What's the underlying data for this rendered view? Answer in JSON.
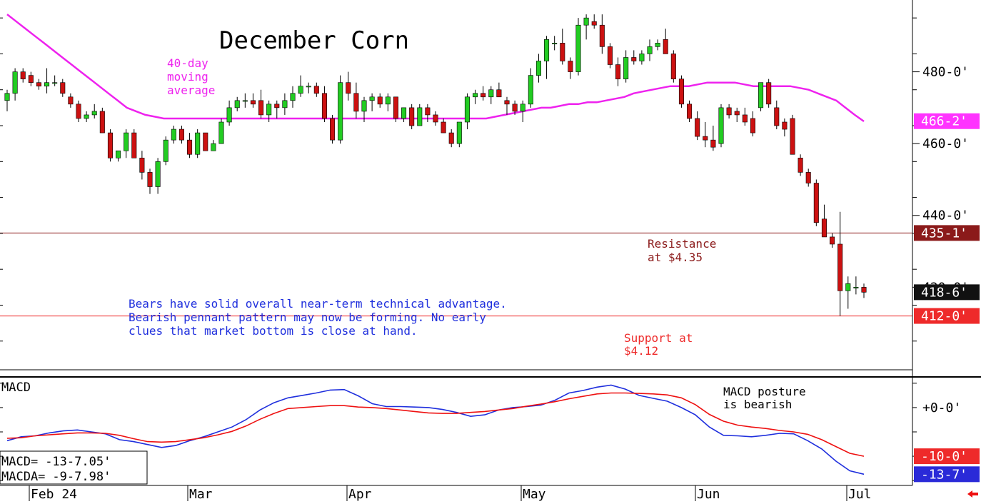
{
  "chart_data": [
    {
      "type": "candlestick",
      "title": "December Corn",
      "ylim": [
        397,
        500
      ],
      "y_ticks": [
        {
          "value": 480,
          "label": "480-0'"
        },
        {
          "value": 460,
          "label": "460-0'"
        },
        {
          "value": 440,
          "label": "440-0'"
        },
        {
          "value": 420,
          "label": "420-0'"
        }
      ],
      "x_labels": [
        "Feb 24",
        "Mar",
        "Apr",
        "May",
        "Jun",
        "Jul"
      ],
      "price_tags": [
        {
          "value": 466.25,
          "label": "466-2'",
          "color": "#ff33ff",
          "text_color": "#ffffff"
        },
        {
          "value": 435.1,
          "label": "435-1'",
          "color": "#8b1a1a",
          "text_color": "#ffffff"
        },
        {
          "value": 418.6,
          "label": "418-6'",
          "color": "#111111",
          "text_color": "#ffffff"
        },
        {
          "value": 412.0,
          "label": "412-0'",
          "color": "#ee2a2a",
          "text_color": "#ffffff"
        }
      ],
      "horizontal_lines": [
        {
          "name": "resistance",
          "value": 435.1,
          "color": "#8b1a1a"
        },
        {
          "name": "support",
          "value": 412.0,
          "color": "#ee2a2a"
        }
      ],
      "annotations": {
        "ma_label": [
          "40-day",
          "moving",
          "average"
        ],
        "resistance": [
          "Resistance",
          "at $4.35"
        ],
        "support": [
          "Support at",
          "$4.12"
        ],
        "commentary": [
          "Bears have solid overall near-term technical advantage.",
          "Bearish pennant pattern may now be forming. No early",
          "clues that market bottom is close at hand."
        ]
      },
      "colors": {
        "up": "#22cc22",
        "down": "#cc1111",
        "ma": "#ee22ee",
        "axis": "#000000"
      },
      "moving_average_40": [
        496,
        494,
        492,
        490,
        488,
        486,
        484,
        482,
        480,
        478,
        476,
        474,
        472,
        470,
        469,
        468,
        467.5,
        467,
        467,
        467,
        467,
        467,
        467,
        467,
        467,
        467,
        467,
        467,
        467,
        467,
        467,
        467,
        467,
        467,
        467,
        467,
        467,
        467,
        467,
        467,
        467,
        467,
        467,
        467,
        467,
        467,
        467,
        467,
        467,
        467,
        467,
        467,
        467,
        467.5,
        468,
        468.5,
        469,
        469.5,
        470,
        470,
        470.5,
        471,
        471,
        471.5,
        471.5,
        472,
        472.5,
        473,
        474,
        474.5,
        475,
        475.5,
        476,
        476,
        476,
        476.5,
        477,
        477,
        477,
        477,
        476.5,
        476,
        476,
        476,
        476,
        476,
        475.5,
        475,
        474,
        473,
        472,
        470,
        468,
        466.2
      ],
      "candles": [
        {
          "o": 472,
          "h": 475,
          "l": 469,
          "c": 474
        },
        {
          "o": 474,
          "h": 481,
          "l": 472,
          "c": 480
        },
        {
          "o": 480,
          "h": 481,
          "l": 477,
          "c": 478
        },
        {
          "o": 479,
          "h": 480,
          "l": 476,
          "c": 477
        },
        {
          "o": 477,
          "h": 478,
          "l": 475,
          "c": 476
        },
        {
          "o": 476,
          "h": 481,
          "l": 474,
          "c": 477
        },
        {
          "o": 477,
          "h": 479,
          "l": 476,
          "c": 477
        },
        {
          "o": 477,
          "h": 478,
          "l": 473,
          "c": 474
        },
        {
          "o": 473,
          "h": 474,
          "l": 470,
          "c": 471
        },
        {
          "o": 471,
          "h": 472,
          "l": 466,
          "c": 467
        },
        {
          "o": 467,
          "h": 469,
          "l": 466,
          "c": 468
        },
        {
          "o": 468,
          "h": 471,
          "l": 467,
          "c": 469
        },
        {
          "o": 469,
          "h": 470,
          "l": 463,
          "c": 463
        },
        {
          "o": 463,
          "h": 464,
          "l": 455,
          "c": 456
        },
        {
          "o": 456,
          "h": 458,
          "l": 455,
          "c": 458
        },
        {
          "o": 458,
          "h": 464,
          "l": 456,
          "c": 463
        },
        {
          "o": 463,
          "h": 464,
          "l": 456,
          "c": 456
        },
        {
          "o": 456,
          "h": 458,
          "l": 450,
          "c": 452
        },
        {
          "o": 452,
          "h": 453,
          "l": 446,
          "c": 448
        },
        {
          "o": 448,
          "h": 456,
          "l": 446,
          "c": 455
        },
        {
          "o": 455,
          "h": 462,
          "l": 454,
          "c": 461
        },
        {
          "o": 461,
          "h": 465,
          "l": 460,
          "c": 464
        },
        {
          "o": 464,
          "h": 465,
          "l": 460,
          "c": 461
        },
        {
          "o": 461,
          "h": 463,
          "l": 456,
          "c": 457
        },
        {
          "o": 457,
          "h": 464,
          "l": 456,
          "c": 463
        },
        {
          "o": 463,
          "h": 463,
          "l": 458,
          "c": 458
        },
        {
          "o": 458,
          "h": 461,
          "l": 458,
          "c": 460
        },
        {
          "o": 460,
          "h": 467,
          "l": 460,
          "c": 466
        },
        {
          "o": 466,
          "h": 472,
          "l": 465,
          "c": 470
        },
        {
          "o": 470,
          "h": 473,
          "l": 469,
          "c": 472
        },
        {
          "o": 472,
          "h": 474,
          "l": 470,
          "c": 472
        },
        {
          "o": 472,
          "h": 474,
          "l": 470,
          "c": 471
        },
        {
          "o": 472,
          "h": 475,
          "l": 467,
          "c": 468
        },
        {
          "o": 468,
          "h": 472,
          "l": 466,
          "c": 471
        },
        {
          "o": 471,
          "h": 472,
          "l": 467,
          "c": 470
        },
        {
          "o": 470,
          "h": 474,
          "l": 468,
          "c": 472
        },
        {
          "o": 472,
          "h": 476,
          "l": 470,
          "c": 474
        },
        {
          "o": 474,
          "h": 479,
          "l": 473,
          "c": 476
        },
        {
          "o": 476,
          "h": 477,
          "l": 474,
          "c": 476
        },
        {
          "o": 476,
          "h": 477,
          "l": 473,
          "c": 474
        },
        {
          "o": 474,
          "h": 476,
          "l": 466,
          "c": 467
        },
        {
          "o": 467,
          "h": 468,
          "l": 460,
          "c": 461
        },
        {
          "o": 461,
          "h": 479,
          "l": 460,
          "c": 477
        },
        {
          "o": 477,
          "h": 480,
          "l": 472,
          "c": 474
        },
        {
          "o": 474,
          "h": 477,
          "l": 467,
          "c": 469
        },
        {
          "o": 469,
          "h": 473,
          "l": 466,
          "c": 472
        },
        {
          "o": 472,
          "h": 474,
          "l": 469,
          "c": 473
        },
        {
          "o": 473,
          "h": 474,
          "l": 470,
          "c": 471
        },
        {
          "o": 471,
          "h": 474,
          "l": 469,
          "c": 473
        },
        {
          "o": 473,
          "h": 473,
          "l": 466,
          "c": 467
        },
        {
          "o": 467,
          "h": 470,
          "l": 466,
          "c": 470
        },
        {
          "o": 470,
          "h": 471,
          "l": 464,
          "c": 465
        },
        {
          "o": 465,
          "h": 471,
          "l": 465,
          "c": 470
        },
        {
          "o": 470,
          "h": 471,
          "l": 466,
          "c": 468
        },
        {
          "o": 468,
          "h": 469,
          "l": 465,
          "c": 466
        },
        {
          "o": 466,
          "h": 467,
          "l": 463,
          "c": 463
        },
        {
          "o": 463,
          "h": 464,
          "l": 459,
          "c": 460
        },
        {
          "o": 460,
          "h": 466,
          "l": 459,
          "c": 466
        },
        {
          "o": 466,
          "h": 474,
          "l": 464,
          "c": 473
        },
        {
          "o": 473,
          "h": 475,
          "l": 471,
          "c": 474
        },
        {
          "o": 474,
          "h": 476,
          "l": 472,
          "c": 473
        },
        {
          "o": 473,
          "h": 476,
          "l": 471,
          "c": 475
        },
        {
          "o": 475,
          "h": 477,
          "l": 473,
          "c": 473
        },
        {
          "o": 472,
          "h": 473,
          "l": 468,
          "c": 471
        },
        {
          "o": 471,
          "h": 472,
          "l": 468,
          "c": 469
        },
        {
          "o": 469,
          "h": 472,
          "l": 466,
          "c": 471
        },
        {
          "o": 471,
          "h": 481,
          "l": 470,
          "c": 479
        },
        {
          "o": 479,
          "h": 485,
          "l": 477,
          "c": 483
        },
        {
          "o": 483,
          "h": 490,
          "l": 478,
          "c": 489
        },
        {
          "o": 488,
          "h": 490,
          "l": 486,
          "c": 488
        },
        {
          "o": 488,
          "h": 492,
          "l": 482,
          "c": 483
        },
        {
          "o": 483,
          "h": 484,
          "l": 478,
          "c": 480
        },
        {
          "o": 480,
          "h": 495,
          "l": 479,
          "c": 493
        },
        {
          "o": 493,
          "h": 496,
          "l": 489,
          "c": 495
        },
        {
          "o": 494,
          "h": 496,
          "l": 492,
          "c": 493
        },
        {
          "o": 493,
          "h": 496,
          "l": 485,
          "c": 487
        },
        {
          "o": 487,
          "h": 488,
          "l": 481,
          "c": 482
        },
        {
          "o": 482,
          "h": 484,
          "l": 476,
          "c": 478
        },
        {
          "o": 478,
          "h": 486,
          "l": 477,
          "c": 484
        },
        {
          "o": 484,
          "h": 486,
          "l": 482,
          "c": 483
        },
        {
          "o": 483,
          "h": 486,
          "l": 482,
          "c": 485
        },
        {
          "o": 485,
          "h": 489,
          "l": 483,
          "c": 487
        },
        {
          "o": 487,
          "h": 489,
          "l": 486,
          "c": 488
        },
        {
          "o": 489,
          "h": 492,
          "l": 485,
          "c": 485
        },
        {
          "o": 485,
          "h": 486,
          "l": 477,
          "c": 478
        },
        {
          "o": 478,
          "h": 479,
          "l": 470,
          "c": 471
        },
        {
          "o": 471,
          "h": 472,
          "l": 466,
          "c": 467
        },
        {
          "o": 467,
          "h": 469,
          "l": 461,
          "c": 462
        },
        {
          "o": 462,
          "h": 466,
          "l": 459,
          "c": 461
        },
        {
          "o": 461,
          "h": 465,
          "l": 458,
          "c": 459
        },
        {
          "o": 460,
          "h": 471,
          "l": 459,
          "c": 470
        },
        {
          "o": 470,
          "h": 471,
          "l": 467,
          "c": 468
        },
        {
          "o": 469,
          "h": 470,
          "l": 466,
          "c": 468
        },
        {
          "o": 468,
          "h": 470,
          "l": 465,
          "c": 466
        },
        {
          "o": 467,
          "h": 469,
          "l": 462,
          "c": 463
        },
        {
          "o": 470,
          "h": 476,
          "l": 469,
          "c": 477
        },
        {
          "o": 477,
          "h": 478,
          "l": 470,
          "c": 471
        },
        {
          "o": 470,
          "h": 472,
          "l": 464,
          "c": 465
        },
        {
          "o": 466,
          "h": 467,
          "l": 462,
          "c": 464
        },
        {
          "o": 467,
          "h": 468,
          "l": 457,
          "c": 457
        },
        {
          "o": 456,
          "h": 457,
          "l": 451,
          "c": 452
        },
        {
          "o": 452,
          "h": 453,
          "l": 448,
          "c": 449
        },
        {
          "o": 449,
          "h": 450,
          "l": 437,
          "c": 438
        },
        {
          "o": 439,
          "h": 443,
          "l": 434,
          "c": 434
        },
        {
          "o": 434,
          "h": 435,
          "l": 431,
          "c": 432
        },
        {
          "o": 432,
          "h": 441,
          "l": 412,
          "c": 419
        },
        {
          "o": 419,
          "h": 423,
          "l": 414,
          "c": 421
        },
        {
          "o": 420,
          "h": 423,
          "l": 418,
          "c": 420
        },
        {
          "o": 420,
          "h": 421,
          "l": 417,
          "c": 418.6
        }
      ]
    },
    {
      "type": "line",
      "title": "MACD",
      "ylim": [
        -16,
        6
      ],
      "y_ticks": [
        {
          "value": 0,
          "label": "+0-0'"
        }
      ],
      "series": [
        {
          "name": "MACD",
          "color": "#1f2fdd",
          "values": [
            -6.8,
            -6.0,
            -5.8,
            -5.2,
            -4.8,
            -4.6,
            -5.0,
            -5.4,
            -6.6,
            -7.0,
            -7.6,
            -8.2,
            -7.8,
            -6.8,
            -6.0,
            -5.0,
            -4.0,
            -2.5,
            -0.5,
            1.0,
            2.0,
            2.5,
            3.0,
            3.6,
            3.7,
            2.4,
            0.8,
            0.2,
            0.2,
            0.1,
            0.0,
            -0.4,
            -1.0,
            -1.8,
            -1.5,
            -0.5,
            0.0,
            0.2,
            0.5,
            1.5,
            3.0,
            3.5,
            4.2,
            4.6,
            3.8,
            2.5,
            1.9,
            1.3,
            0.0,
            -1.5,
            -4.0,
            -5.7,
            -5.8,
            -6.0,
            -5.7,
            -5.3,
            -5.4,
            -6.8,
            -8.5,
            -11.0,
            -13.0,
            -13.7
          ]
        },
        {
          "name": "MACDA",
          "color": "#ee1111",
          "values": [
            -6.3,
            -6.2,
            -5.8,
            -5.6,
            -5.4,
            -5.2,
            -5.2,
            -5.3,
            -5.7,
            -6.4,
            -7.0,
            -7.1,
            -7.0,
            -6.6,
            -6.2,
            -5.6,
            -4.9,
            -3.8,
            -2.4,
            -1.2,
            -0.2,
            0.0,
            0.2,
            0.4,
            0.4,
            0.1,
            0.0,
            -0.2,
            -0.5,
            -0.8,
            -1.1,
            -1.2,
            -1.2,
            -1.0,
            -0.8,
            -0.5,
            -0.2,
            0.3,
            0.7,
            1.2,
            1.8,
            2.3,
            2.8,
            3.0,
            3.0,
            2.9,
            2.8,
            2.6,
            2.0,
            0.6,
            -1.4,
            -2.8,
            -3.6,
            -4.0,
            -4.3,
            -4.7,
            -5.0,
            -5.5,
            -6.6,
            -8.0,
            -9.4,
            -10.0
          ]
        }
      ],
      "x_labels": [
        "Feb 24",
        "Mar",
        "Apr",
        "May",
        "Jun",
        "Jul"
      ],
      "legend": [
        {
          "label": "MACD=",
          "value": "-13-7.05'"
        },
        {
          "label": "MACDA=",
          "value": "-9-7.98'"
        }
      ],
      "price_tags": [
        {
          "value": -10.0,
          "label": "-10-0'",
          "color": "#ee2a2a",
          "text_color": "#ffffff"
        },
        {
          "value": -13.7,
          "label": "-13-7'",
          "color": "#2a2ad8",
          "text_color": "#ffffff"
        }
      ],
      "annotation": [
        "MACD posture",
        "is bearish"
      ]
    }
  ]
}
